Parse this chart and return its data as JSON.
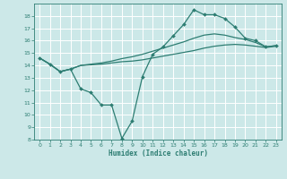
{
  "background_color": "#cce8e8",
  "grid_color": "#ffffff",
  "line_color": "#2d7d72",
  "xlabel": "Humidex (Indice chaleur)",
  "ylim": [
    8,
    19
  ],
  "xlim": [
    -0.5,
    23.5
  ],
  "yticks": [
    8,
    9,
    10,
    11,
    12,
    13,
    14,
    15,
    16,
    17,
    18
  ],
  "xticks": [
    0,
    1,
    2,
    3,
    4,
    5,
    6,
    7,
    8,
    9,
    10,
    11,
    12,
    13,
    14,
    15,
    16,
    17,
    18,
    19,
    20,
    21,
    22,
    23
  ],
  "series": [
    {
      "x": [
        0,
        1,
        2,
        3,
        4,
        5,
        6,
        7,
        8,
        9,
        10,
        11,
        12,
        13,
        14,
        15,
        16,
        17,
        18,
        19,
        20,
        21,
        22,
        23
      ],
      "y": [
        14.6,
        14.1,
        13.5,
        13.7,
        12.1,
        11.8,
        10.8,
        10.8,
        8.1,
        9.5,
        13.1,
        14.9,
        15.5,
        16.4,
        17.3,
        18.5,
        18.1,
        18.1,
        17.8,
        17.1,
        16.2,
        16.0,
        15.5,
        15.6
      ],
      "marker": "D",
      "markersize": 2.0,
      "linewidth": 0.9
    },
    {
      "x": [
        0,
        1,
        2,
        3,
        4,
        5,
        6,
        7,
        8,
        9,
        10,
        11,
        12,
        13,
        14,
        15,
        16,
        17,
        18,
        19,
        20,
        21,
        22,
        23
      ],
      "y": [
        14.6,
        14.1,
        13.5,
        13.7,
        14.0,
        14.05,
        14.1,
        14.2,
        14.3,
        14.35,
        14.45,
        14.6,
        14.75,
        14.9,
        15.05,
        15.2,
        15.4,
        15.55,
        15.65,
        15.7,
        15.65,
        15.55,
        15.45,
        15.55
      ],
      "marker": null,
      "markersize": 0,
      "linewidth": 0.9
    },
    {
      "x": [
        0,
        1,
        2,
        3,
        4,
        5,
        6,
        7,
        8,
        9,
        10,
        11,
        12,
        13,
        14,
        15,
        16,
        17,
        18,
        19,
        20,
        21,
        22,
        23
      ],
      "y": [
        14.6,
        14.1,
        13.5,
        13.7,
        14.0,
        14.1,
        14.2,
        14.35,
        14.55,
        14.7,
        14.9,
        15.15,
        15.4,
        15.65,
        15.9,
        16.2,
        16.45,
        16.55,
        16.45,
        16.25,
        16.1,
        15.85,
        15.5,
        15.6
      ],
      "marker": null,
      "markersize": 0,
      "linewidth": 0.9
    }
  ]
}
